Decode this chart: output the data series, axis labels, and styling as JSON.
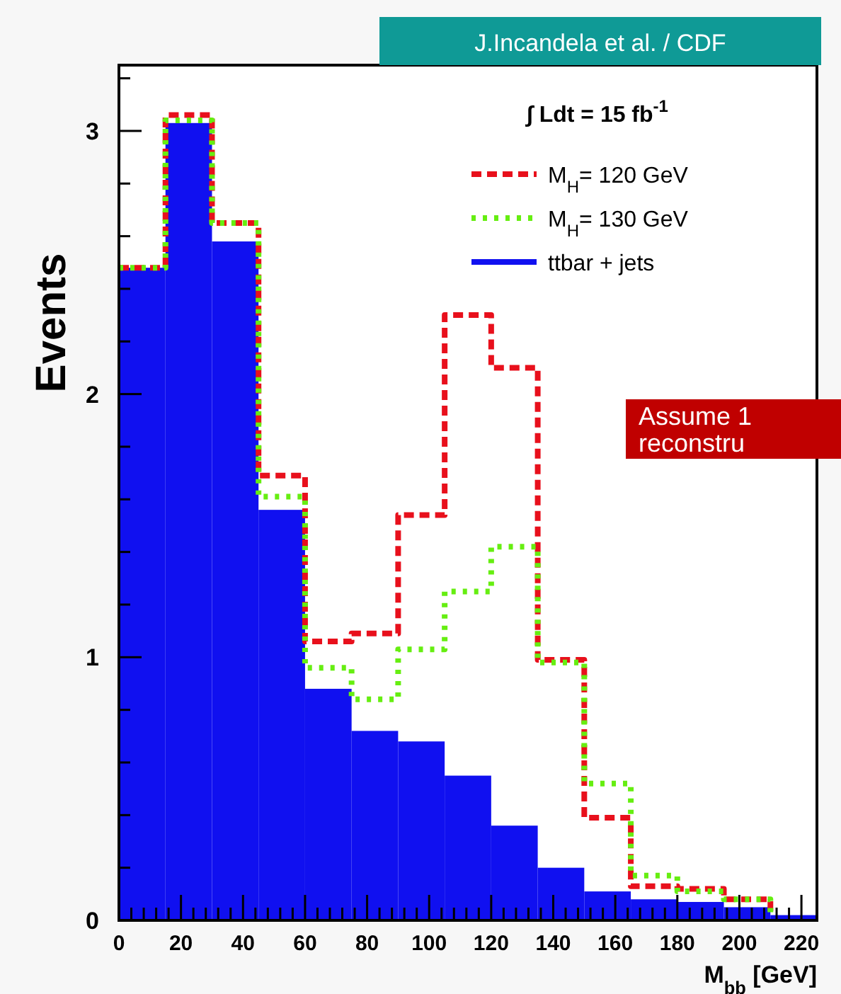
{
  "chart_data": {
    "type": "histogram",
    "annotations": [
      "J.Incandela et al. / CDF",
      "∫ Ldt = 15 fb$^{-1}$",
      "Assume 1",
      "reconstru"
    ],
    "xlabel": "M$_{bb}$ [GeV]",
    "ylabel": "Events",
    "bins": [
      0,
      15,
      30,
      45,
      60,
      75,
      90,
      105,
      120,
      135,
      150,
      165,
      180,
      195,
      210,
      225
    ],
    "series": [
      {
        "name": "M$_{H}$= 120 GeV",
        "type": "step",
        "x": [
          0,
          15,
          30,
          45,
          60,
          75,
          90,
          105,
          120,
          135,
          150,
          165,
          180,
          195,
          210
        ],
        "line_style": "dashed",
        "color": "#e8101c",
        "values": [
          2.48,
          3.06,
          2.65,
          1.69,
          1.06,
          1.09,
          1.54,
          2.3,
          2.1,
          0.99,
          0.39,
          0.13,
          0.12,
          0.08,
          0.03
        ]
      },
      {
        "name": "M$_{H}$= 130 GeV",
        "type": "step",
        "x": [
          0,
          15,
          30,
          45,
          60,
          75,
          90,
          105,
          120,
          135,
          150,
          165,
          180,
          195,
          210
        ],
        "line_style": "dotted",
        "color": "#66ee11",
        "values": [
          2.48,
          3.04,
          2.65,
          1.61,
          0.96,
          0.84,
          1.03,
          1.25,
          1.42,
          0.98,
          0.52,
          0.17,
          0.11,
          0.08,
          0.02
        ]
      },
      {
        "name": "ttbar + jets",
        "color": "#1010f0",
        "values": [
          2.48,
          3.03,
          2.58,
          1.56,
          0.88,
          0.72,
          0.68,
          0.55,
          0.36,
          0.2,
          0.11,
          0.08,
          0.07,
          0.05,
          0.02
        ]
      }
    ],
    "xlim": [
      0,
      225
    ],
    "ylim": [
      0,
      3.25
    ],
    "xticks": [
      0,
      {
        "value": 4,
        "label": null
      },
      {
        "value": 8,
        "label": null
      },
      {
        "value": 12,
        "label": null
      },
      {
        "value": 16,
        "label": null
      },
      20,
      {
        "value": 24,
        "label": null
      },
      {
        "value": 28,
        "label": null
      },
      {
        "value": 32,
        "label": null
      },
      {
        "value": 36,
        "label": null
      },
      40,
      {
        "value": 44,
        "label": null
      },
      {
        "value": 48,
        "label": null
      },
      {
        "value": 52,
        "label": null
      },
      {
        "value": 56,
        "label": null
      },
      60,
      {
        "value": 64,
        "label": null
      },
      {
        "value": 68,
        "label": null
      },
      {
        "value": 72,
        "label": null
      },
      {
        "value": 76,
        "label": null
      },
      80,
      {
        "value": 84,
        "label": null
      },
      {
        "value": 88,
        "label": null
      },
      {
        "value": 92,
        "label": null
      },
      {
        "value": 96,
        "label": null
      },
      100,
      {
        "value": 104,
        "label": null
      },
      {
        "value": 108,
        "label": null
      },
      {
        "value": 112,
        "label": null
      },
      {
        "value": 116,
        "label": null
      },
      120,
      {
        "value": 124,
        "label": null
      },
      {
        "value": 128,
        "label": null
      },
      {
        "value": 132,
        "label": null
      },
      {
        "value": 136,
        "label": null
      },
      140,
      {
        "value": 144,
        "label": null
      },
      {
        "value": 148,
        "label": null
      },
      {
        "value": 152,
        "label": null
      },
      {
        "value": 156,
        "label": null
      },
      160,
      {
        "value": 164,
        "label": null
      },
      {
        "value": 168,
        "label": null
      },
      {
        "value": 172,
        "label": null
      },
      {
        "value": 176,
        "label": null
      },
      180,
      {
        "value": 184,
        "label": null
      },
      {
        "value": 188,
        "label": null
      },
      {
        "value": 192,
        "label": null
      },
      {
        "value": 196,
        "label": null
      },
      200,
      {
        "value": 204,
        "label": null
      },
      {
        "value": 208,
        "label": null
      },
      {
        "value": 212,
        "label": null
      },
      {
        "value": 216,
        "label": null
      },
      220
    ],
    "yticks": [
      0,
      {
        "value": 0.2,
        "label": null
      },
      {
        "value": 0.4,
        "label": null
      },
      {
        "value": 0.6,
        "label": null
      },
      {
        "value": 0.8,
        "label": null
      },
      1,
      {
        "value": 1.2,
        "label": null
      },
      {
        "value": 1.4,
        "label": null
      },
      {
        "value": 1.6,
        "label": null
      },
      {
        "value": 1.8,
        "label": null
      },
      2,
      {
        "value": 2.2,
        "label": null
      },
      {
        "value": 2.4,
        "label": null
      },
      {
        "value": 2.6,
        "label": null
      },
      {
        "value": 2.8,
        "label": null
      },
      3,
      {
        "value": 3.2,
        "label": null
      }
    ],
    "legend": "top right",
    "grid": false
  }
}
